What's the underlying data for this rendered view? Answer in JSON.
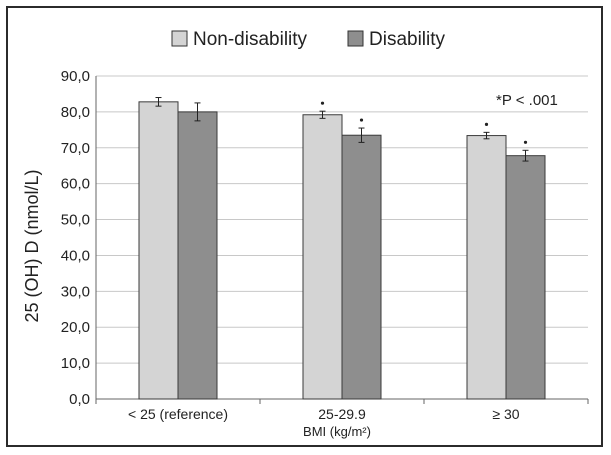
{
  "chart_data": {
    "type": "bar",
    "categories": [
      "< 25 (reference)",
      "25-29.9",
      "≥ 30"
    ],
    "xlabel": "BMI (kg/m²)",
    "ylabel": "25 (OH) D (nmol/L)",
    "ylim": [
      0,
      90
    ],
    "yticks": [
      "0,0",
      "10,0",
      "20,0",
      "30,0",
      "40,0",
      "50,0",
      "60,0",
      "70,0",
      "80,0",
      "90,0"
    ],
    "legend_placement": "top",
    "annotation": "*P < .001",
    "series": [
      {
        "name": "Non-disability",
        "color": "#d4d4d4",
        "values": [
          82.8,
          79.2,
          73.4
        ],
        "error": [
          1.2,
          1.0,
          0.9
        ],
        "significant": [
          false,
          true,
          true
        ]
      },
      {
        "name": "Disability",
        "color": "#8e8e8e",
        "values": [
          80.0,
          73.5,
          67.8
        ],
        "error": [
          2.5,
          2.0,
          1.5
        ],
        "significant": [
          false,
          true,
          true
        ]
      }
    ]
  }
}
